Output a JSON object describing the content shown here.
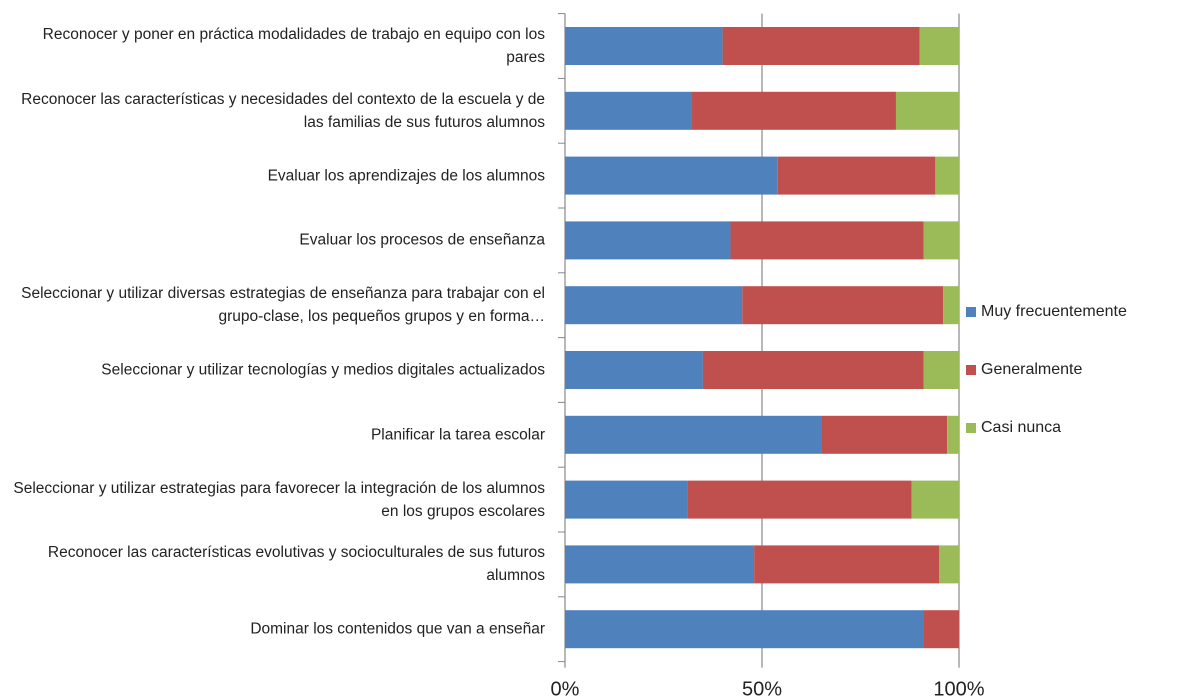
{
  "chart_data": {
    "type": "stacked_barh",
    "categories": [
      "Reconocer y poner en práctica modalidades de trabajo en equipo con los pares",
      "Reconocer las características y necesidades del contexto de la escuela y de las familias de sus futuros alumnos",
      "Evaluar los aprendizajes de los alumnos",
      "Evaluar los procesos de enseñanza",
      "Seleccionar y utilizar diversas estrategias de enseñanza para trabajar con el grupo-clase, los pequeños grupos y en forma…",
      "Seleccionar y utilizar tecnologías y medios digitales actualizados",
      "Planificar la tarea escolar",
      "Seleccionar y utilizar estrategias para favorecer la integración de los alumnos en los grupos escolares",
      "Reconocer las características evolutivas y socioculturales de sus futuros alumnos",
      "Dominar los contenidos que van a enseñar"
    ],
    "series": [
      {
        "name": "Muy frecuentemente",
        "color": "#4f81bd",
        "values": [
          40,
          32,
          54,
          42,
          45,
          35,
          65,
          31,
          48,
          91
        ]
      },
      {
        "name": "Generalmente",
        "color": "#c0504d",
        "values": [
          50,
          52,
          40,
          49,
          51,
          56,
          32,
          57,
          47,
          9
        ]
      },
      {
        "name": "Casi nunca",
        "color": "#9bbb59",
        "values": [
          10,
          16,
          6,
          9,
          4,
          9,
          3,
          12,
          5,
          0
        ]
      }
    ],
    "xlim": [
      0,
      100
    ],
    "xticks": [
      {
        "value": 0,
        "label": "0%"
      },
      {
        "value": 50,
        "label": "50%"
      },
      {
        "value": 100,
        "label": "100%"
      }
    ],
    "grid": true,
    "legend": "right"
  }
}
